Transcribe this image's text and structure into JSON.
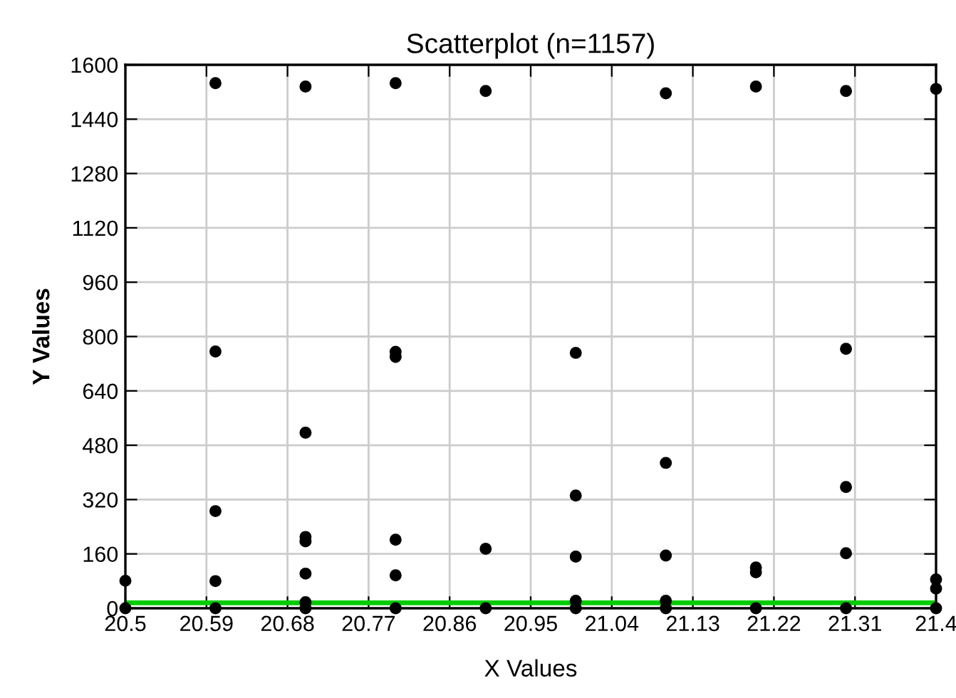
{
  "chart_data": {
    "type": "scatter",
    "title": "Scatterplot (n=1157)",
    "xlabel": "X Values",
    "ylabel": "Y Values",
    "x": [
      20.5,
      20.5,
      20.6,
      20.6,
      20.6,
      20.6,
      20.6,
      20.7,
      20.7,
      20.7,
      20.7,
      20.7,
      20.7,
      20.7,
      20.8,
      20.8,
      20.8,
      20.8,
      20.8,
      20.8,
      20.9,
      20.9,
      20.9,
      21.0,
      21.0,
      21.0,
      21.0,
      21.0,
      21.1,
      21.1,
      21.1,
      21.1,
      21.1,
      21.2,
      21.2,
      21.2,
      21.2,
      21.3,
      21.3,
      21.3,
      21.3,
      21.3,
      21.4,
      21.4,
      21.4,
      21.4
    ],
    "series": [
      {
        "color": "#000000",
        "values": [
          81,
          0,
          1546,
          756,
          286,
          80,
          0,
          1536,
          517,
          210,
          197,
          102,
          18,
          0,
          1546,
          755,
          740,
          202,
          97,
          0,
          1523,
          175,
          0,
          752,
          332,
          152,
          22,
          0,
          1516,
          428,
          155,
          22,
          0,
          1536,
          120,
          106,
          0,
          1523,
          764,
          357,
          162,
          0,
          1529,
          85,
          58,
          0
        ]
      }
    ],
    "xlim": [
      20.5,
      21.4
    ],
    "xticks": [
      20.5,
      20.59,
      20.68,
      20.77,
      20.86,
      20.95,
      21.04,
      21.13,
      21.22,
      21.31,
      21.4
    ],
    "ylim": [
      0,
      1600
    ],
    "yticks": [
      0,
      160,
      320,
      480,
      640,
      800,
      960,
      1120,
      1280,
      1440,
      1600
    ],
    "ref_lines": [
      {
        "axis": "y",
        "value": 16,
        "color": "#00cc00"
      }
    ],
    "grid": true,
    "marker": "circle"
  }
}
